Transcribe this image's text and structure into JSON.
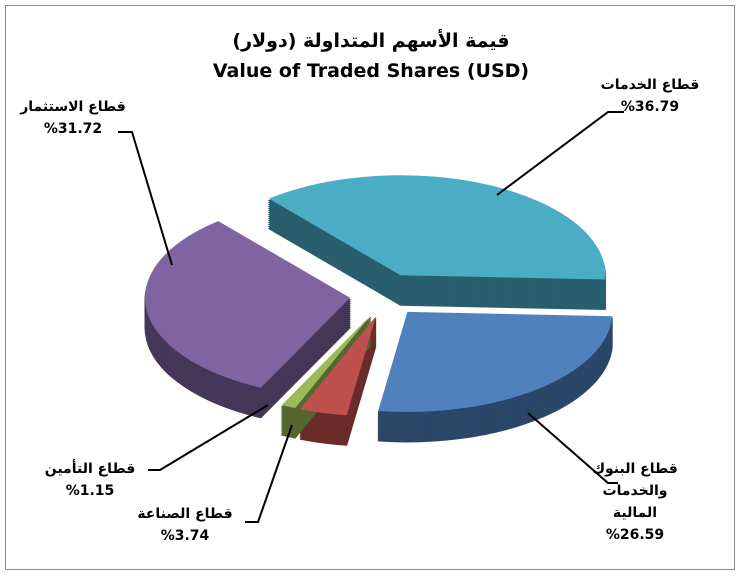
{
  "chart_data": {
    "type": "pie",
    "title": "قيمة الأسهم المتداولة (دولار)",
    "subtitle": "Value of Traded Shares (USD)",
    "categories": [
      "قطاع الخدمات",
      "قطاع البنوك والخدمات المالية",
      "قطاع الصناعة",
      "قطاع التأمين",
      "قطاع الاستثمار"
    ],
    "values": [
      36.79,
      26.59,
      3.74,
      1.15,
      31.72
    ],
    "value_labels": [
      "%36.79",
      "%26.59",
      "%3.74",
      "%1.15",
      "%31.72"
    ],
    "colors": [
      "#4bacc6",
      "#4f81bd",
      "#c0504d",
      "#9bbb59",
      "#8064a2"
    ]
  }
}
